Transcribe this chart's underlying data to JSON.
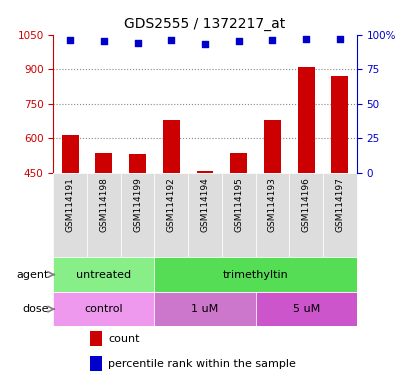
{
  "title": "GDS2555 / 1372217_at",
  "samples": [
    "GSM114191",
    "GSM114198",
    "GSM114199",
    "GSM114192",
    "GSM114194",
    "GSM114195",
    "GSM114193",
    "GSM114196",
    "GSM114197"
  ],
  "counts": [
    615,
    535,
    530,
    680,
    458,
    535,
    680,
    910,
    870
  ],
  "percentile_ranks": [
    96,
    95,
    94,
    96,
    93,
    95,
    96,
    97,
    97
  ],
  "ylim_left": [
    450,
    1050
  ],
  "ylim_right": [
    0,
    100
  ],
  "yticks_left": [
    450,
    600,
    750,
    900,
    1050
  ],
  "yticks_right": [
    0,
    25,
    50,
    75,
    100
  ],
  "ytick_labels_right": [
    "0",
    "25",
    "50",
    "75",
    "100%"
  ],
  "bar_color": "#cc0000",
  "scatter_color": "#0000cc",
  "grid_color": "#888888",
  "agent_groups": [
    {
      "label": "untreated",
      "start": 0,
      "end": 3,
      "color": "#88ee88"
    },
    {
      "label": "trimethyltin",
      "start": 3,
      "end": 9,
      "color": "#55dd55"
    }
  ],
  "dose_groups": [
    {
      "label": "control",
      "start": 0,
      "end": 3,
      "color": "#ee99ee"
    },
    {
      "label": "1 uM",
      "start": 3,
      "end": 6,
      "color": "#cc77cc"
    },
    {
      "label": "5 uM",
      "start": 6,
      "end": 9,
      "color": "#cc55cc"
    }
  ],
  "xlabel_color": "#000000",
  "left_axis_color": "#cc0000",
  "right_axis_color": "#0000cc",
  "background_color": "#ffffff",
  "plot_bg_color": "#ffffff",
  "tick_bg_color": "#dddddd"
}
